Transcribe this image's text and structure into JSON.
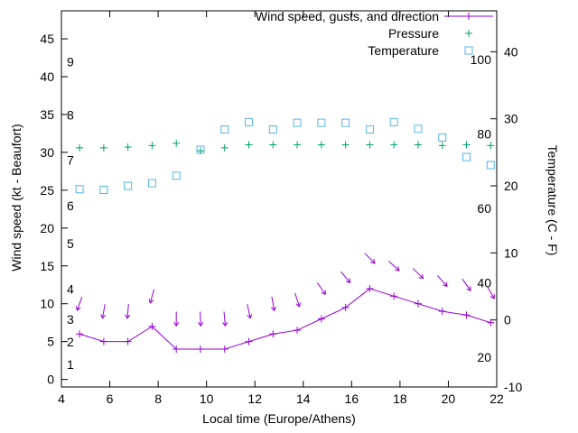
{
  "colors": {
    "background": "#ffffff",
    "axis": "#000000",
    "text": "#000000"
  },
  "chart_data": {
    "type": "line",
    "title": "",
    "xlabel": "Local time (Europe/Athens)",
    "ylabel_left": "Wind speed (kt - Beaufort)",
    "ylabel_right": "Temperature (C - F)",
    "xlim": [
      4,
      22
    ],
    "x_ticks": [
      4,
      6,
      8,
      10,
      12,
      14,
      16,
      18,
      20,
      22
    ],
    "ylim_left": [
      -1,
      48.7
    ],
    "y_ticks_left": [
      0,
      5,
      10,
      15,
      20,
      25,
      30,
      35,
      40,
      45
    ],
    "ylim_right": [
      -10,
      46.1
    ],
    "y_ticks_right": [
      -10,
      0,
      10,
      20,
      30,
      40
    ],
    "beaufort_scale": {
      "labels": [
        "1",
        "2",
        "3",
        "4",
        "5",
        "6",
        "7",
        "8",
        "9"
      ],
      "knots": [
        1,
        4,
        7,
        11,
        17,
        22,
        28,
        34,
        41
      ]
    },
    "fahrenheit_scale": {
      "labels": [
        "20",
        "40",
        "60",
        "80",
        "100"
      ],
      "values_f": [
        20,
        40,
        60,
        80,
        100
      ]
    },
    "x": [
      4.75,
      5.75,
      6.75,
      7.75,
      8.75,
      9.75,
      10.75,
      11.75,
      12.75,
      13.75,
      14.75,
      15.75,
      16.75,
      17.75,
      18.75,
      19.75,
      20.75,
      21.75
    ],
    "series": [
      {
        "name": "Wind speed, gusts, and direction",
        "axis": "left",
        "color": "#9400d3",
        "marker": "plus",
        "line": true,
        "values": [
          6,
          5,
          5,
          7,
          4,
          4,
          4,
          5,
          6,
          6.5,
          8,
          9.5,
          12,
          11,
          10,
          9,
          8.5,
          7.5
        ]
      },
      {
        "name": "Pressure",
        "axis": "left",
        "color": "#009e73",
        "marker": "plus",
        "line": false,
        "values": [
          30.6,
          30.6,
          30.7,
          30.9,
          31.2,
          30.2,
          30.6,
          31,
          31,
          31,
          31,
          31,
          31,
          31,
          31,
          30.9,
          31,
          30.9
        ]
      },
      {
        "name": "Temperature",
        "axis": "right",
        "color": "#56b4e9",
        "marker": "square",
        "line": false,
        "values": [
          19.5,
          19.4,
          20.0,
          20.4,
          21.5,
          25.4,
          28.4,
          29.5,
          28.4,
          29.4,
          29.4,
          29.4,
          28.4,
          29.5,
          28.5,
          27.2,
          24.3,
          23.1
        ]
      }
    ],
    "wind_direction": {
      "color": "#9400d3",
      "offset_kt": 4,
      "angles_deg": [
        110,
        100,
        95,
        105,
        90,
        88,
        85,
        78,
        80,
        72,
        55,
        50,
        45,
        42,
        45,
        48,
        55,
        60
      ]
    },
    "grid": false,
    "legend_position": "top-right-inside"
  }
}
